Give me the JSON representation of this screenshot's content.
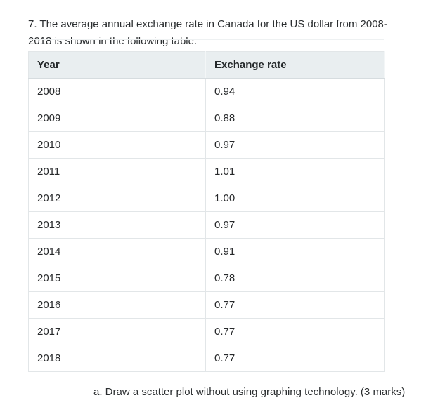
{
  "document": {
    "question": "7. The average annual exchange rate in Canada for the US dollar from 2008-2018 is shown in the following table.",
    "footer_partial": "a. Draw a scatter plot without using graphing technology. (3 marks)"
  },
  "table": {
    "headers": {
      "year": "Year",
      "rate": "Exchange rate"
    },
    "rows": [
      {
        "year": "2008",
        "rate": "0.94"
      },
      {
        "year": "2009",
        "rate": "0.88"
      },
      {
        "year": "2010",
        "rate": "0.97"
      },
      {
        "year": "2011",
        "rate": "1.01"
      },
      {
        "year": "2012",
        "rate": "1.00"
      },
      {
        "year": "2013",
        "rate": "0.97"
      },
      {
        "year": "2014",
        "rate": "0.91"
      },
      {
        "year": "2015",
        "rate": "0.78"
      },
      {
        "year": "2016",
        "rate": "0.77"
      },
      {
        "year": "2017",
        "rate": "0.77"
      },
      {
        "year": "2018",
        "rate": "0.77"
      }
    ]
  },
  "colors": {
    "header_bg": "#e9eef0",
    "border": "#e2e6e8",
    "text": "#2b2e30"
  }
}
